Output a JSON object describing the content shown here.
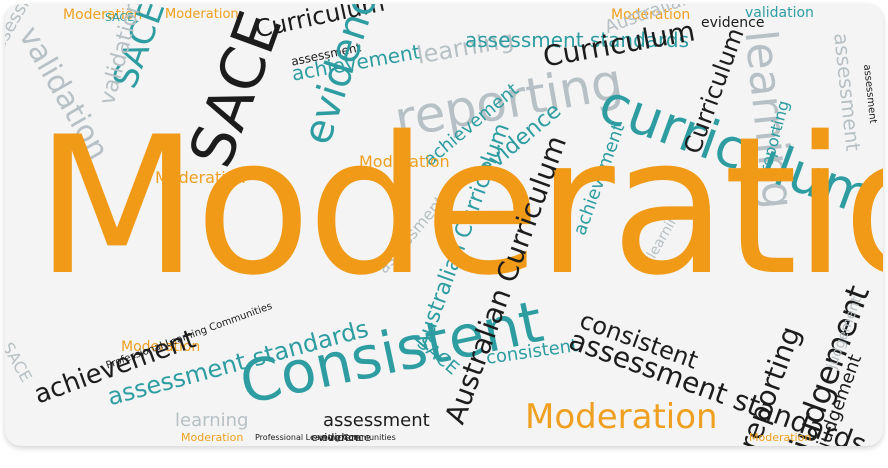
{
  "word_cloud": {
    "main_word": "Moderation",
    "words": [
      "Moderation",
      "Moderation",
      "Moderation",
      "Moderation",
      "Moderation",
      "Moderation",
      "Moderation",
      "Moderation",
      "Moderation",
      "SACE",
      "SACE",
      "SACE",
      "SACE",
      "SACE",
      "Curriculum",
      "Curriculum",
      "curriculum",
      "Curriculum",
      "achievement",
      "achievement",
      "achievement",
      "achievement",
      "evidence",
      "evidence",
      "evidence",
      "evidence",
      "evidence",
      "reporting",
      "reporting",
      "reporting",
      "validation",
      "validation",
      "validation",
      "learning",
      "learning",
      "learning",
      "learning",
      "assessment",
      "assessment",
      "assessment",
      "assessment",
      "assessment",
      "assessment standards",
      "assessment standards",
      "assessment standards",
      "Australian Curriculum",
      "Australian Curriculum",
      "Australian Curriculum",
      "consistent",
      "Consistent",
      "consistent",
      "judgement",
      "judgement",
      "judgement",
      "Professional Learning Communities",
      "Professional Learning Communities"
    ]
  },
  "colors": {
    "orange": "#f09a18",
    "teal": "#2e9da2",
    "black": "#1c1c1c",
    "grey": "#b7c0c4"
  }
}
